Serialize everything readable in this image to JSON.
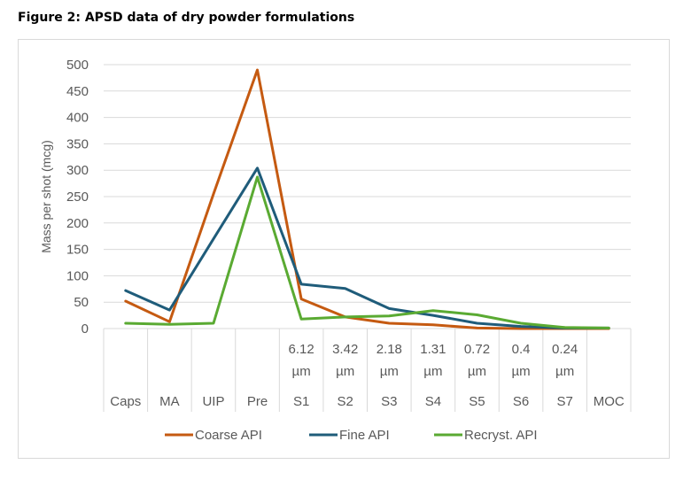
{
  "figure_title": "Figure 2: APSD data of dry powder formulations",
  "chart_data": {
    "type": "line",
    "title": "",
    "xlabel": "",
    "ylabel": "Mass per shot (mcg)",
    "ylim": [
      0,
      500
    ],
    "yticks": [
      0,
      50,
      100,
      150,
      200,
      250,
      300,
      350,
      400,
      450,
      500
    ],
    "grid": true,
    "legend_position": "bottom",
    "categories": [
      "Caps",
      "MA",
      "UIP",
      "Pre",
      "S1",
      "S2",
      "S3",
      "S4",
      "S5",
      "S6",
      "S7",
      "MOC"
    ],
    "category_sizes": [
      "",
      "",
      "",
      "",
      "6.12",
      "3.42",
      "2.18",
      "1.31",
      "0.72",
      "0.4",
      "0.24",
      ""
    ],
    "size_unit": "µm",
    "series": [
      {
        "name": "Coarse API",
        "color": "#c55a11",
        "values": [
          52,
          13,
          255,
          490,
          56,
          22,
          10,
          7,
          1,
          0,
          0,
          0
        ]
      },
      {
        "name": "Fine API",
        "color": "#1f5c7a",
        "values": [
          72,
          35,
          170,
          304,
          84,
          76,
          38,
          25,
          10,
          4,
          1,
          1
        ]
      },
      {
        "name": "Recryst. API",
        "color": "#5aaa32",
        "values": [
          10,
          8,
          10,
          287,
          18,
          22,
          24,
          34,
          26,
          10,
          2,
          1
        ]
      }
    ]
  }
}
